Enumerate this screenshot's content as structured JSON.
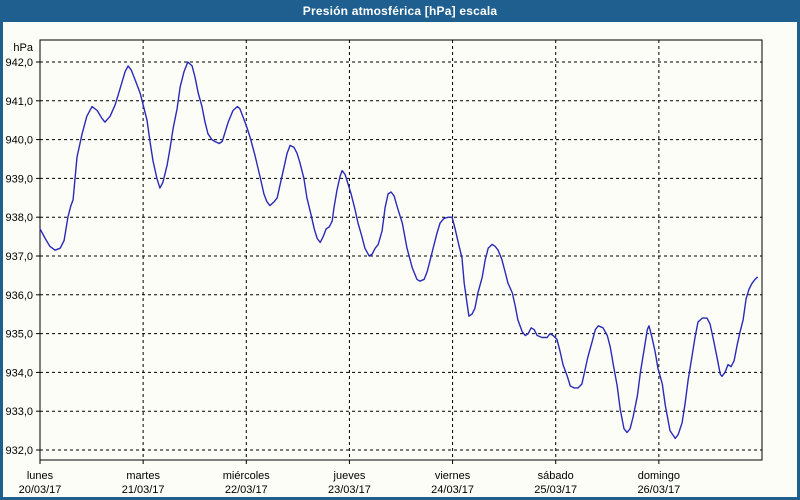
{
  "window": {
    "title": "Presión atmosférica [hPa] escala"
  },
  "colors": {
    "frame": "#1e5f90",
    "titlebar": "#1e5f90",
    "title_text": "#ffffff",
    "plot_background": "#fcfdf7",
    "plot_border": "#000000",
    "grid": "#000000",
    "line": "#2a2ab8",
    "label": "#000000"
  },
  "chart_data": {
    "type": "line",
    "title": "Presión atmosférica [hPa] escala",
    "y_unit_label": "hPa",
    "ylabel": "hPa",
    "xlabel": "",
    "grid": "dashed",
    "legend": "none",
    "ylim": [
      931.7,
      942.6
    ],
    "y_ticks": [
      942,
      941,
      940,
      939,
      938,
      937,
      936,
      935,
      934,
      933,
      932
    ],
    "y_tick_labels": [
      "942,0",
      "941,0",
      "940,0",
      "939,0",
      "938,0",
      "937,0",
      "936,0",
      "935,0",
      "934,0",
      "933,0",
      "932,0"
    ],
    "x_hours_span": 168,
    "x_days": [
      {
        "name": "lunes",
        "date": "20/03/17"
      },
      {
        "name": "martes",
        "date": "21/03/17"
      },
      {
        "name": "miércoles",
        "date": "22/03/17"
      },
      {
        "name": "jueves",
        "date": "23/03/17"
      },
      {
        "name": "viernes",
        "date": "24/03/17"
      },
      {
        "name": "sábado",
        "date": "25/03/17"
      },
      {
        "name": "domingo",
        "date": "26/03/17"
      }
    ],
    "line_color": "#2a2ab8",
    "series": [
      {
        "name": "Presión atmosférica [hPa]",
        "points": [
          [
            0,
            937.7
          ],
          [
            1.2,
            937.45
          ],
          [
            2.3,
            937.25
          ],
          [
            3.5,
            937.15
          ],
          [
            4.7,
            937.2
          ],
          [
            5.6,
            937.4
          ],
          [
            6.5,
            938.0
          ],
          [
            7.2,
            938.3
          ],
          [
            7.7,
            938.45
          ],
          [
            8.6,
            939.55
          ],
          [
            9.8,
            940.15
          ],
          [
            10.9,
            940.6
          ],
          [
            12.1,
            940.85
          ],
          [
            13.3,
            940.75
          ],
          [
            14.4,
            940.55
          ],
          [
            15.1,
            940.45
          ],
          [
            16.3,
            940.6
          ],
          [
            17.5,
            940.9
          ],
          [
            18.6,
            941.3
          ],
          [
            19.8,
            941.75
          ],
          [
            20.5,
            941.9
          ],
          [
            21.2,
            941.8
          ],
          [
            22.1,
            941.55
          ],
          [
            23.3,
            941.2
          ],
          [
            24,
            940.9
          ],
          [
            24.9,
            940.5
          ],
          [
            25.6,
            939.95
          ],
          [
            26.3,
            939.45
          ],
          [
            27.2,
            939.0
          ],
          [
            27.9,
            938.75
          ],
          [
            28.6,
            938.9
          ],
          [
            29.6,
            939.35
          ],
          [
            30.3,
            939.8
          ],
          [
            31,
            940.3
          ],
          [
            31.9,
            940.8
          ],
          [
            32.6,
            941.35
          ],
          [
            33.5,
            941.75
          ],
          [
            34.4,
            942.0
          ],
          [
            35.4,
            941.9
          ],
          [
            36.1,
            941.6
          ],
          [
            36.8,
            941.2
          ],
          [
            37.7,
            940.85
          ],
          [
            38.4,
            940.45
          ],
          [
            39.1,
            940.15
          ],
          [
            40,
            940.0
          ],
          [
            40.7,
            939.95
          ],
          [
            41.7,
            939.9
          ],
          [
            42.4,
            939.95
          ],
          [
            43.1,
            940.2
          ],
          [
            43.8,
            940.45
          ],
          [
            44.9,
            940.75
          ],
          [
            45.9,
            940.85
          ],
          [
            46.5,
            940.8
          ],
          [
            47.2,
            940.6
          ],
          [
            48.2,
            940.3
          ],
          [
            48.9,
            940.05
          ],
          [
            50,
            939.6
          ],
          [
            51.2,
            939.05
          ],
          [
            52.1,
            938.6
          ],
          [
            52.8,
            938.4
          ],
          [
            53.5,
            938.3
          ],
          [
            54.5,
            938.4
          ],
          [
            55.2,
            938.5
          ],
          [
            55.9,
            938.85
          ],
          [
            56.8,
            939.3
          ],
          [
            57.5,
            939.65
          ],
          [
            58.2,
            939.85
          ],
          [
            59.1,
            939.8
          ],
          [
            59.8,
            939.65
          ],
          [
            60.5,
            939.4
          ],
          [
            61.4,
            939.0
          ],
          [
            62.1,
            938.5
          ],
          [
            63.1,
            938.05
          ],
          [
            63.8,
            937.7
          ],
          [
            64.5,
            937.45
          ],
          [
            65.2,
            937.35
          ],
          [
            65.9,
            937.5
          ],
          [
            66.6,
            937.7
          ],
          [
            67.3,
            937.75
          ],
          [
            68,
            937.9
          ],
          [
            68.4,
            938.25
          ],
          [
            69.1,
            938.7
          ],
          [
            69.8,
            939.05
          ],
          [
            70.3,
            939.2
          ],
          [
            71,
            939.1
          ],
          [
            71.7,
            938.85
          ],
          [
            72.4,
            938.6
          ],
          [
            73.3,
            938.2
          ],
          [
            74,
            937.85
          ],
          [
            74.9,
            937.5
          ],
          [
            75.6,
            937.2
          ],
          [
            76.6,
            937.0
          ],
          [
            77.3,
            937.05
          ],
          [
            78,
            937.2
          ],
          [
            78.7,
            937.3
          ],
          [
            79.6,
            937.65
          ],
          [
            80.3,
            938.25
          ],
          [
            81,
            938.6
          ],
          [
            81.7,
            938.65
          ],
          [
            82.4,
            938.55
          ],
          [
            83.3,
            938.2
          ],
          [
            84.3,
            937.85
          ],
          [
            85.4,
            937.2
          ],
          [
            86.6,
            936.7
          ],
          [
            87.7,
            936.4
          ],
          [
            88.4,
            936.35
          ],
          [
            89.4,
            936.4
          ],
          [
            90.1,
            936.6
          ],
          [
            90.8,
            936.9
          ],
          [
            91.7,
            937.3
          ],
          [
            92.4,
            937.6
          ],
          [
            93.1,
            937.85
          ],
          [
            94,
            937.97
          ],
          [
            95,
            938.0
          ],
          [
            95.9,
            938.0
          ],
          [
            96.6,
            937.7
          ],
          [
            97.3,
            937.35
          ],
          [
            98.2,
            936.95
          ],
          [
            98.7,
            936.3
          ],
          [
            99.4,
            935.75
          ],
          [
            99.8,
            935.45
          ],
          [
            100.5,
            935.5
          ],
          [
            101.2,
            935.65
          ],
          [
            101.9,
            936.05
          ],
          [
            102.9,
            936.45
          ],
          [
            103.6,
            936.9
          ],
          [
            104.3,
            937.2
          ],
          [
            105.2,
            937.3
          ],
          [
            105.9,
            937.25
          ],
          [
            106.6,
            937.15
          ],
          [
            107.5,
            936.9
          ],
          [
            108.2,
            936.6
          ],
          [
            108.9,
            936.3
          ],
          [
            109.9,
            936.05
          ],
          [
            110.6,
            935.7
          ],
          [
            111.2,
            935.35
          ],
          [
            112.2,
            935.05
          ],
          [
            112.9,
            934.95
          ],
          [
            113.6,
            935.0
          ],
          [
            114.3,
            935.15
          ],
          [
            115,
            935.1
          ],
          [
            115.7,
            934.95
          ],
          [
            116.8,
            934.9
          ],
          [
            118,
            934.9
          ],
          [
            118.7,
            935.0
          ],
          [
            119.4,
            934.95
          ],
          [
            120.3,
            934.85
          ],
          [
            121,
            934.55
          ],
          [
            121.7,
            934.2
          ],
          [
            122.7,
            933.9
          ],
          [
            123.4,
            933.65
          ],
          [
            124.3,
            933.6
          ],
          [
            125.2,
            933.6
          ],
          [
            126.1,
            933.7
          ],
          [
            126.8,
            934.05
          ],
          [
            127.5,
            934.4
          ],
          [
            128.5,
            934.8
          ],
          [
            129.2,
            935.1
          ],
          [
            129.9,
            935.2
          ],
          [
            131,
            935.15
          ],
          [
            132,
            934.95
          ],
          [
            132.7,
            934.65
          ],
          [
            133.4,
            934.2
          ],
          [
            134.3,
            933.65
          ],
          [
            135,
            933.05
          ],
          [
            135.9,
            932.55
          ],
          [
            136.6,
            932.45
          ],
          [
            137.3,
            932.55
          ],
          [
            138,
            932.85
          ],
          [
            139,
            933.4
          ],
          [
            139.7,
            934.0
          ],
          [
            140.6,
            934.6
          ],
          [
            141.3,
            935.1
          ],
          [
            141.7,
            935.2
          ],
          [
            142.4,
            934.9
          ],
          [
            143.1,
            934.55
          ],
          [
            143.8,
            934.1
          ],
          [
            144.8,
            933.7
          ],
          [
            145.5,
            933.15
          ],
          [
            146.6,
            932.5
          ],
          [
            147.8,
            932.3
          ],
          [
            148.5,
            932.4
          ],
          [
            149.4,
            932.7
          ],
          [
            150.1,
            933.2
          ],
          [
            150.8,
            933.8
          ],
          [
            151.7,
            934.4
          ],
          [
            152.4,
            934.9
          ],
          [
            153.1,
            935.3
          ],
          [
            154.1,
            935.4
          ],
          [
            155.2,
            935.4
          ],
          [
            155.9,
            935.25
          ],
          [
            156.6,
            934.9
          ],
          [
            157.6,
            934.35
          ],
          [
            158.3,
            933.95
          ],
          [
            158.7,
            933.9
          ],
          [
            159.4,
            934.0
          ],
          [
            160.1,
            934.2
          ],
          [
            160.8,
            934.15
          ],
          [
            161.5,
            934.3
          ],
          [
            162.2,
            934.7
          ],
          [
            162.9,
            935.05
          ],
          [
            163.6,
            935.35
          ],
          [
            164.3,
            935.9
          ],
          [
            165,
            936.15
          ],
          [
            165.7,
            936.3
          ],
          [
            166.4,
            936.4
          ],
          [
            166.9,
            936.45
          ]
        ]
      }
    ]
  }
}
